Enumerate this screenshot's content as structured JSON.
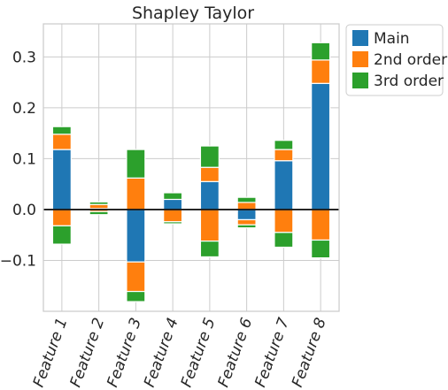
{
  "chart_data": {
    "type": "bar",
    "stacked": true,
    "title": "Shapley Taylor",
    "xlabel": "",
    "ylabel": "",
    "categories": [
      "Feature 1",
      "Feature 2",
      "Feature 3",
      "Feature 4",
      "Feature 5",
      "Feature 6",
      "Feature 7",
      "Feature 8"
    ],
    "yticks": [
      -0.1,
      0.0,
      0.1,
      0.2,
      0.3
    ],
    "ytick_labels": [
      "−0.1",
      "0.0",
      "0.1",
      "0.2",
      "0.3"
    ],
    "ylim": [
      -0.2,
      0.365
    ],
    "grid": true,
    "zero_line": true,
    "legend_position": "outside top-right",
    "series": [
      {
        "name": "Main",
        "color": "#1f77b4",
        "values": [
          0.118,
          0.002,
          -0.103,
          0.02,
          0.055,
          -0.02,
          0.096,
          0.248
        ]
      },
      {
        "name": "2nd order",
        "color": "#ff7f0e",
        "pos_values": [
          0.03,
          0.008,
          0.062,
          0.0,
          0.028,
          0.014,
          0.022,
          0.046
        ],
        "neg_values": [
          -0.032,
          -0.004,
          -0.058,
          -0.024,
          -0.062,
          -0.01,
          -0.045,
          -0.06
        ]
      },
      {
        "name": "3rd order",
        "color": "#2ca02c",
        "pos_values": [
          0.015,
          0.005,
          0.056,
          0.013,
          0.042,
          0.01,
          0.018,
          0.034
        ],
        "neg_values": [
          -0.036,
          -0.006,
          -0.02,
          -0.004,
          -0.031,
          -0.006,
          -0.029,
          -0.035
        ]
      }
    ]
  }
}
